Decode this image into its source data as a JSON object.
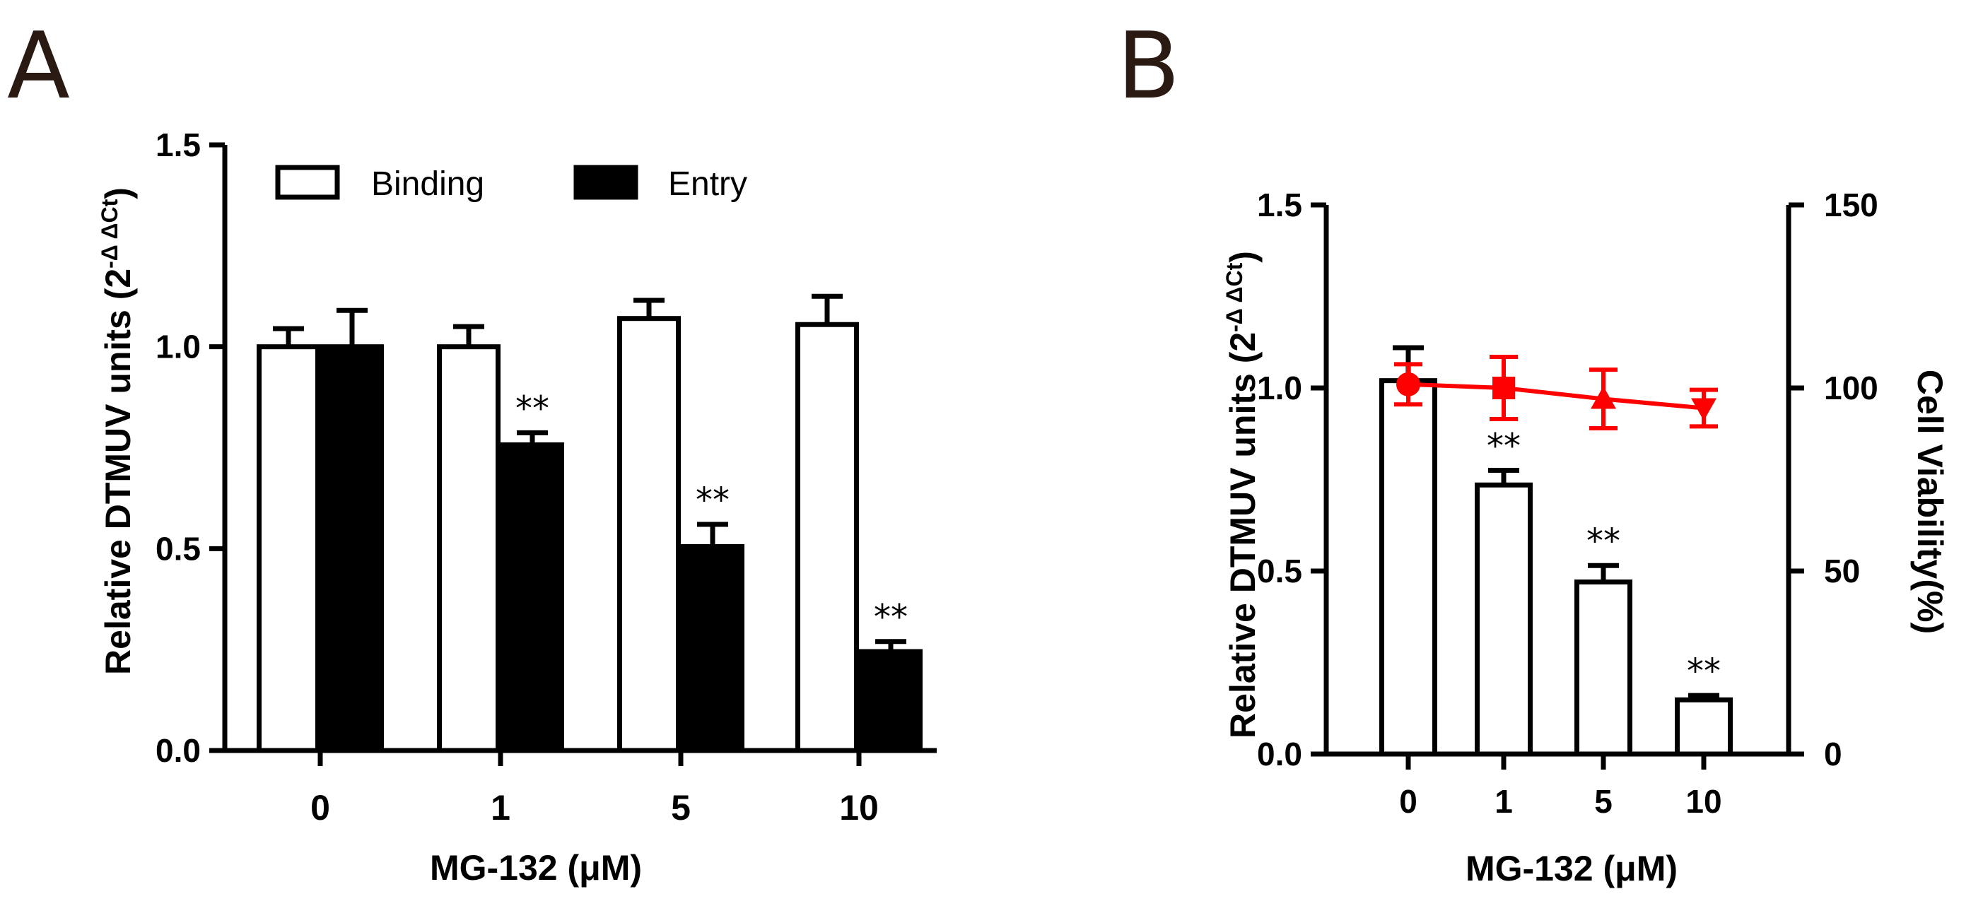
{
  "panels": {
    "a": {
      "letter": "A"
    },
    "b": {
      "letter": "B"
    }
  },
  "chart_data": [
    {
      "type": "bar",
      "panel": "A",
      "categories": [
        "0",
        "1",
        "5",
        "10"
      ],
      "series": [
        {
          "name": "Binding",
          "fill": "#ffffff",
          "values": [
            1.0,
            1.0,
            1.07,
            1.055
          ],
          "errors": [
            0.045,
            0.05,
            0.045,
            0.07
          ]
        },
        {
          "name": "Entry",
          "fill": "#000000",
          "values": [
            1.0,
            0.757,
            0.505,
            0.245
          ],
          "errors": [
            0.09,
            0.03,
            0.055,
            0.025
          ]
        }
      ],
      "annotations": [
        {
          "series": "Entry",
          "category": "1",
          "text": "**"
        },
        {
          "series": "Entry",
          "category": "5",
          "text": "**"
        },
        {
          "series": "Entry",
          "category": "10",
          "text": "**"
        }
      ],
      "xlabel": "MG-132 (μM)",
      "ylabel": {
        "main": "Relative DTMUV units (2",
        "sup": "-Δ ΔCt",
        "close": ")"
      },
      "ylim": [
        0,
        1.5
      ],
      "yticks": [
        "0.0",
        "0.5",
        "1.0",
        "1.5"
      ],
      "legend": "top-left"
    },
    {
      "type": "bar+line",
      "panel": "B",
      "categories": [
        "0",
        "1",
        "5",
        "10"
      ],
      "bars": {
        "name": "Relative DTMUV units",
        "fill": "#ffffff",
        "values": [
          1.02,
          0.735,
          0.47,
          0.148
        ],
        "errors": [
          0.09,
          0.04,
          0.045,
          0.012
        ]
      },
      "line": {
        "name": "Cell Viability",
        "color": "#ff0000",
        "values": [
          101,
          100,
          97,
          94.5
        ],
        "errors": [
          5.5,
          8.5,
          8,
          5
        ]
      },
      "annotations": [
        {
          "category": "1",
          "text": "**"
        },
        {
          "category": "5",
          "text": "**"
        },
        {
          "category": "10",
          "text": "**"
        }
      ],
      "xlabel": "MG-132 (μM)",
      "ylabel_left": {
        "main": "Relative DTMUV units (2",
        "sup": "-Δ ΔCt",
        "close": ")"
      },
      "ylabel_right": "Cell Viability(%)",
      "ylim_left": [
        0,
        1.5
      ],
      "ylim_right": [
        0,
        150
      ],
      "yticks_left": [
        "0.0",
        "0.5",
        "1.0",
        "1.5"
      ],
      "yticks_right": [
        "0",
        "50",
        "100",
        "150"
      ]
    }
  ]
}
